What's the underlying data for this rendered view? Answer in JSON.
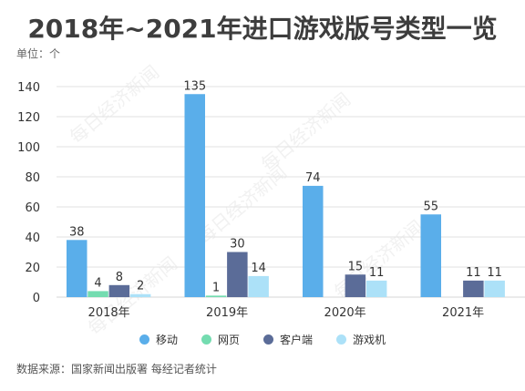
{
  "title": "2018年~2021年进口游戏版号类型一览",
  "unit_label": "单位：个",
  "source_note": "数据来源：国家新闻出版署 每经记者统计",
  "watermark": "每日经济新闻",
  "chart_data": {
    "type": "bar",
    "title": "2018年~2021年进口游戏版号类型一览",
    "xlabel": "",
    "ylabel": "",
    "unit": "个",
    "categories": [
      "2018年",
      "2019年",
      "2020年",
      "2021年"
    ],
    "ylim": [
      0,
      140
    ],
    "yticks": [
      0,
      20,
      40,
      60,
      80,
      100,
      120,
      140
    ],
    "grid": true,
    "legend_position": "bottom",
    "series": [
      {
        "name": "移动",
        "color": "#5aaeea",
        "values": [
          38,
          135,
          74,
          55
        ]
      },
      {
        "name": "网页",
        "color": "#74dcb0",
        "values": [
          4,
          1,
          0,
          0
        ]
      },
      {
        "name": "客户端",
        "color": "#5b6c98",
        "values": [
          8,
          30,
          15,
          11
        ]
      },
      {
        "name": "游戏机",
        "color": "#ace1f8",
        "values": [
          2,
          14,
          11,
          11
        ]
      }
    ]
  }
}
